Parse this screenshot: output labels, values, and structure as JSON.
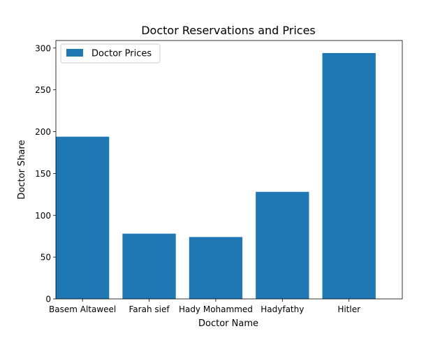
{
  "chart_data": {
    "type": "bar",
    "title": "Doctor Reservations and Prices",
    "xlabel": "Doctor Name",
    "ylabel": "Doctor Share",
    "categories": [
      "Basem Altaweel",
      "Farah sief",
      "Hady Mohammed",
      "Hadyfathy",
      "Hitler"
    ],
    "series": [
      {
        "name": "Doctor Prices",
        "values": [
          194,
          78,
          74,
          128,
          294
        ],
        "color": "#1f77b4"
      }
    ],
    "ylim": [
      0,
      309
    ],
    "yticks": [
      0,
      50,
      100,
      150,
      200,
      250,
      300
    ],
    "grid": false,
    "legend_position": "top-left"
  }
}
